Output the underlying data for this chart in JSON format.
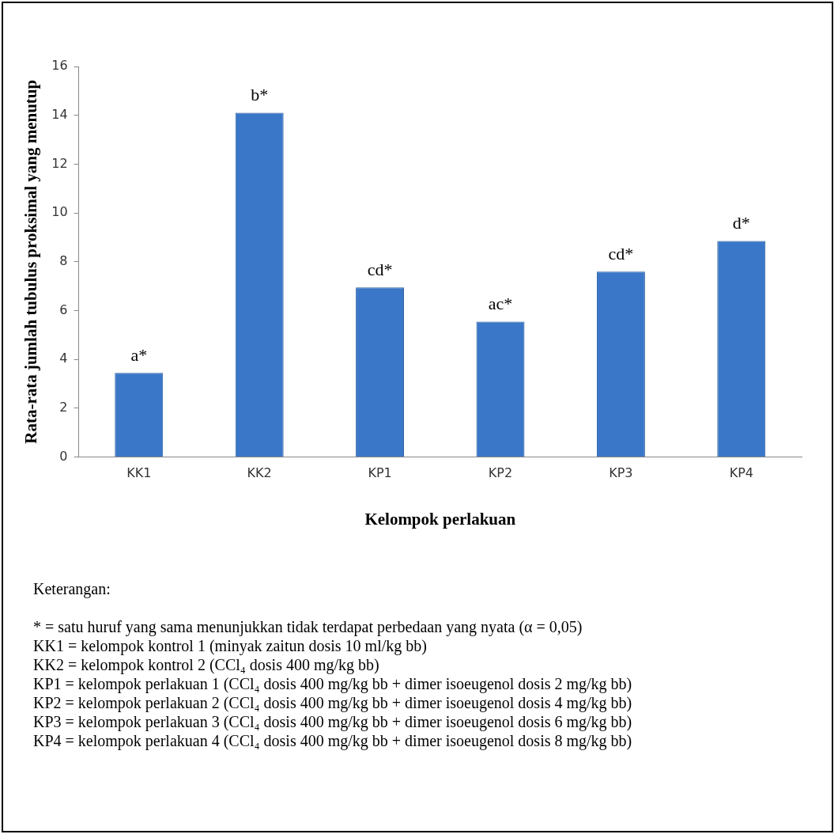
{
  "chart_data": {
    "type": "bar",
    "xlabel": "Kelompok perlakuan",
    "ylabel": "Rata-rata jumlah tubulus proksimal yang menutup",
    "categories": [
      "KK1",
      "KK2",
      "KP1",
      "KP2",
      "KP3",
      "KP4"
    ],
    "values": [
      3.45,
      14.1,
      6.95,
      5.55,
      7.6,
      8.85
    ],
    "color": "#3a77c8",
    "ylim": [
      0,
      16
    ],
    "yticks": [
      0,
      2,
      4,
      6,
      8,
      10,
      12,
      14,
      16
    ],
    "grid": false,
    "legend": false,
    "annotations": [
      {
        "text": "a*",
        "x": "KK1",
        "y": 3.45
      },
      {
        "text": "b*",
        "x": "KK2",
        "y": 14.1
      },
      {
        "text": "cd*",
        "x": "KP1",
        "y": 6.95
      },
      {
        "text": "ac*",
        "x": "KP2",
        "y": 5.55
      },
      {
        "text": "cd*",
        "x": "KP3",
        "y": 7.6
      },
      {
        "text": "d*",
        "x": "KP4",
        "y": 8.85
      },
      "Keterangan:",
      "* = satu huruf yang sama menunjukkan tidak terdapat perbedaan yang nyata (α = 0,05)",
      "KK1 = kelompok kontrol 1 (minyak zaitun dosis 10 ml/kg bb)",
      "KK2 = kelompok kontrol 2 (CCl₄ dosis 400 mg/kg bb)",
      "KP1 = kelompok perlakuan 1 (CCl₄ dosis 400 mg/kg bb + dimer isoeugenol dosis 2 mg/kg bb)",
      "KP2 = kelompok perlakuan 2 (CCl₄ dosis 400 mg/kg bb + dimer isoeugenol dosis 4 mg/kg bb)",
      "KP3 = kelompok perlakuan 3 (CCl₄ dosis 400 mg/kg bb + dimer isoeugenol dosis 6 mg/kg bb)",
      "KP4 = kelompok perlakuan 4 (CCl₄ dosis 400 mg/kg bb + dimer isoeugenol dosis 8 mg/kg bb)"
    ]
  }
}
